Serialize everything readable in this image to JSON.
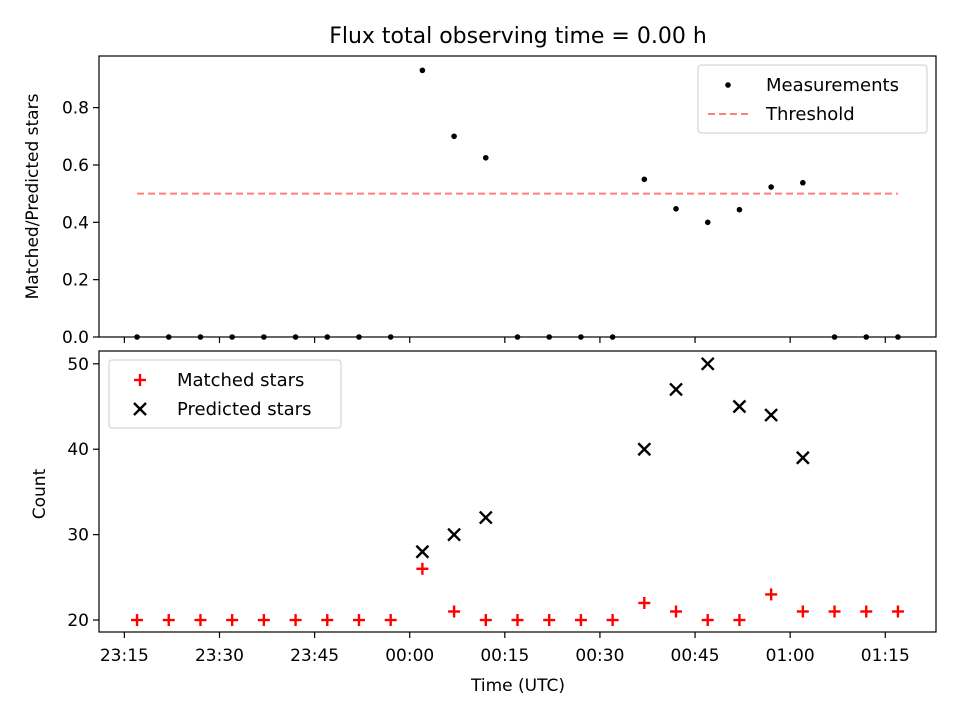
{
  "chart_data": [
    {
      "type": "scatter",
      "title": "Flux total observing time = 0.00 h",
      "xlabel": "",
      "ylabel": "Matched/Predicted stars",
      "ylim": [
        0,
        0.98
      ],
      "yticks": [
        "0.0",
        "0.2",
        "0.4",
        "0.6",
        "0.8"
      ],
      "legend": "top-right",
      "series": [
        {
          "name": "Measurements",
          "style": "point",
          "color": "#000000",
          "x": [
            "23:17",
            "23:22",
            "23:27",
            "23:32",
            "23:37",
            "23:42",
            "23:47",
            "23:52",
            "23:57",
            "00:02",
            "00:07",
            "00:12",
            "00:17",
            "00:22",
            "00:27",
            "00:32",
            "00:37",
            "00:42",
            "00:47",
            "00:52",
            "00:57",
            "01:02",
            "01:07",
            "01:12",
            "01:17"
          ],
          "y": [
            0,
            0,
            0,
            0,
            0,
            0,
            0,
            0,
            0,
            0.93,
            0.7,
            0.625,
            0,
            0,
            0,
            0,
            0.55,
            0.447,
            0.4,
            0.444,
            0.523,
            0.538,
            0,
            0,
            0
          ]
        },
        {
          "name": "Threshold",
          "style": "dashed-line",
          "color": "#ff7f7f",
          "x": [
            "23:17",
            "01:17"
          ],
          "y": [
            0.5,
            0.5
          ]
        }
      ]
    },
    {
      "type": "scatter",
      "title": "",
      "xlabel": "Time (UTC)",
      "ylabel": "Count",
      "ylim": [
        18.6,
        51.5
      ],
      "yticks": [
        "20",
        "30",
        "40",
        "50"
      ],
      "xticks": [
        "23:15",
        "23:30",
        "23:45",
        "00:00",
        "00:15",
        "00:30",
        "00:45",
        "01:00",
        "01:15"
      ],
      "legend": "top-left",
      "series": [
        {
          "name": "Matched stars",
          "marker": "plus",
          "color": "#ff0000",
          "x": [
            "23:17",
            "23:22",
            "23:27",
            "23:32",
            "23:37",
            "23:42",
            "23:47",
            "23:52",
            "23:57",
            "00:02",
            "00:07",
            "00:12",
            "00:17",
            "00:22",
            "00:27",
            "00:32",
            "00:37",
            "00:42",
            "00:47",
            "00:52",
            "00:57",
            "01:02",
            "01:07",
            "01:12",
            "01:17"
          ],
          "y": [
            20,
            20,
            20,
            20,
            20,
            20,
            20,
            20,
            20,
            26,
            21,
            20,
            20,
            20,
            20,
            20,
            22,
            21,
            20,
            20,
            23,
            21,
            21,
            21,
            21
          ]
        },
        {
          "name": "Predicted stars",
          "marker": "x",
          "color": "#000000",
          "x": [
            "00:02",
            "00:07",
            "00:12",
            "00:37",
            "00:42",
            "00:47",
            "00:52",
            "00:57",
            "01:02"
          ],
          "y": [
            28,
            30,
            32,
            40,
            47,
            50,
            45,
            44,
            39
          ]
        }
      ]
    }
  ]
}
